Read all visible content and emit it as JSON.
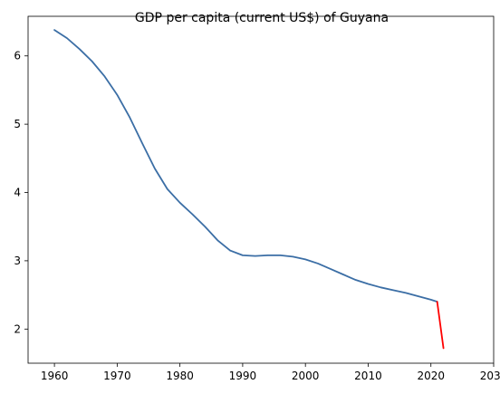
{
  "chart_data": {
    "type": "line",
    "title": "GDP per capita (current US$) of Guyana",
    "xlabel": "",
    "ylabel": "",
    "xlim": [
      1955.8,
      2030
    ],
    "ylim": [
      1.5,
      6.58
    ],
    "xticks": [
      1960,
      1970,
      1980,
      1990,
      2000,
      2010,
      2020,
      2030
    ],
    "yticks": [
      2,
      3,
      4,
      5,
      6
    ],
    "grid": false,
    "legend": "none",
    "colors": {
      "main": "#3b6ea5",
      "tail": "#ff0000"
    },
    "series": [
      {
        "x": [
          1960,
          1962,
          1964,
          1966,
          1968,
          1970,
          1972,
          1974,
          1976,
          1978,
          1980,
          1982,
          1984,
          1986,
          1988,
          1990,
          1992,
          1994,
          1996,
          1998,
          2000,
          2002,
          2004,
          2006,
          2008,
          2010,
          2012,
          2014,
          2016,
          2018,
          2020,
          2021
        ],
        "values": [
          6.38,
          6.26,
          6.1,
          5.92,
          5.7,
          5.43,
          5.1,
          4.72,
          4.35,
          4.05,
          3.85,
          3.68,
          3.5,
          3.3,
          3.15,
          3.08,
          3.07,
          3.08,
          3.08,
          3.06,
          3.02,
          2.96,
          2.88,
          2.8,
          2.72,
          2.66,
          2.61,
          2.57,
          2.53,
          2.48,
          2.43,
          2.4
        ]
      },
      {
        "x": [
          2021,
          2022
        ],
        "values": [
          2.4,
          1.72
        ]
      }
    ]
  }
}
